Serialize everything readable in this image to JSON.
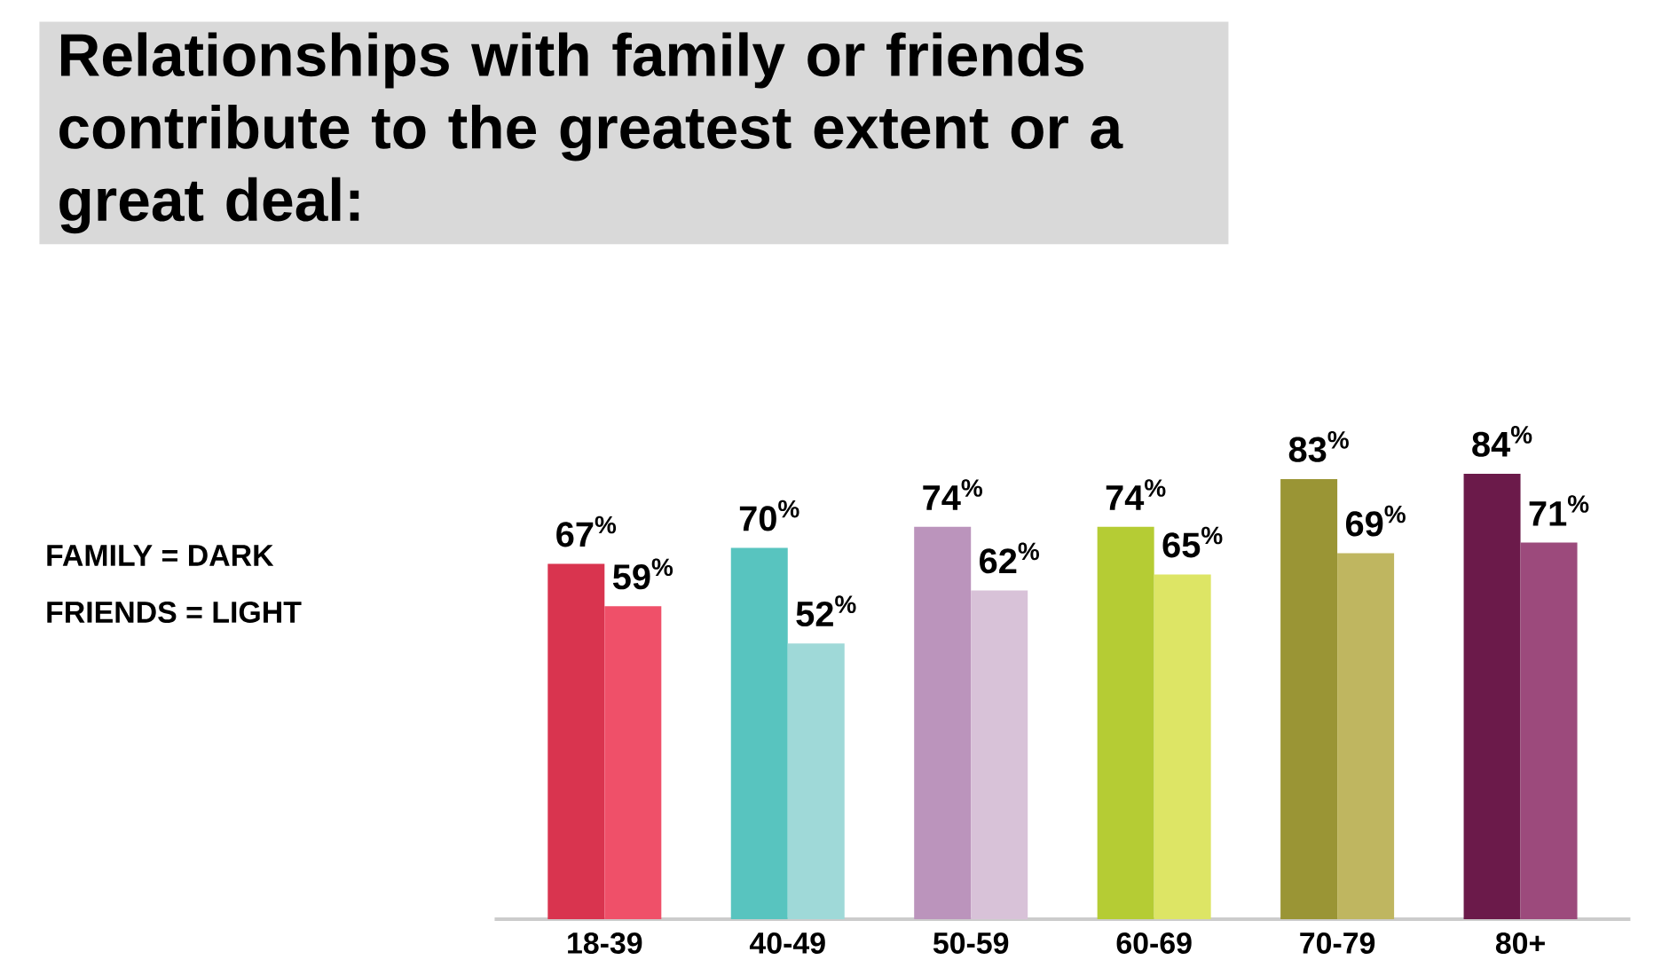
{
  "chart_data": {
    "type": "bar",
    "title": "Relationships with family or friends contribute to the greatest extent or a great deal:",
    "categories": [
      "18-39",
      "40-49",
      "50-59",
      "60-69",
      "70-79",
      "80+"
    ],
    "series": [
      {
        "colors": [
          "#d9344f",
          "#58c4bf",
          "#bb94bc",
          "#b5cc34",
          "#9a9535",
          "#6b1a4a"
        ],
        "values": [
          67,
          70,
          74,
          74,
          83,
          84
        ],
        "value_labels": [
          "67$^{%}$",
          "70$^{%}$",
          "74$^{%}$",
          "74$^{%}$",
          "83$^{%}$",
          "84$^{%}$"
        ]
      },
      {
        "colors": [
          "#ef5069",
          "#9fd9d8",
          "#d8c2d8",
          "#dde565",
          "#bfb660",
          "#9c4a7c"
        ],
        "values": [
          59,
          52,
          62,
          65,
          69,
          71
        ],
        "value_labels": [
          "59$^{%}$",
          "52$^{%}$",
          "62$^{%}$",
          "65$^{%}$",
          "69$^{%}$",
          "71$^{%}$"
        ]
      }
    ],
    "annotations": [
      "FAMILY = DARK",
      "FRIENDS = LIGHT"
    ]
  }
}
